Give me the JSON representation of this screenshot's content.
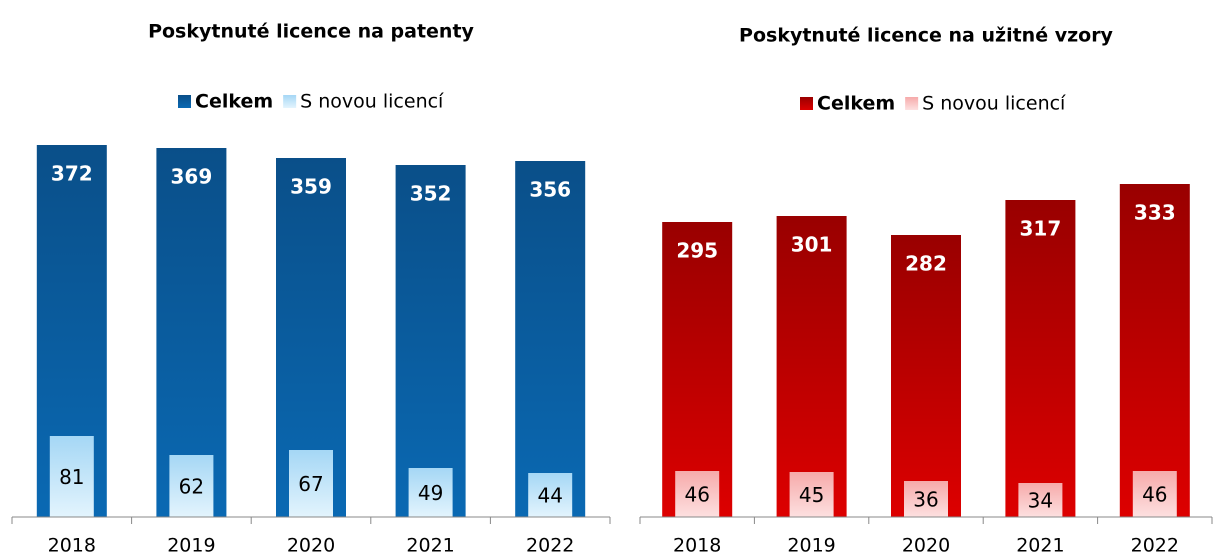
{
  "chart_data": [
    {
      "type": "bar",
      "title": "Poskytnuté licence na patenty",
      "categories": [
        "2018",
        "2019",
        "2020",
        "2021",
        "2022"
      ],
      "series": [
        {
          "name": "Celkem",
          "color": "#0a5c9e",
          "values": [
            372,
            369,
            359,
            352,
            356
          ]
        },
        {
          "name": "S novou licencí",
          "color": "#b8e2f8",
          "values": [
            81,
            62,
            67,
            49,
            44
          ]
        }
      ],
      "ylim": [
        0,
        400
      ]
    },
    {
      "type": "bar",
      "title": "Poskytnuté licence na užitné vzory",
      "categories": [
        "2018",
        "2019",
        "2020",
        "2021",
        "2022"
      ],
      "series": [
        {
          "name": "Celkem",
          "color": "#bd0000",
          "values": [
            295,
            301,
            282,
            317,
            333
          ]
        },
        {
          "name": "S novou licencí",
          "color": "#f9bcbc",
          "values": [
            46,
            45,
            36,
            34,
            46
          ]
        }
      ],
      "ylim": [
        0,
        400
      ]
    }
  ]
}
